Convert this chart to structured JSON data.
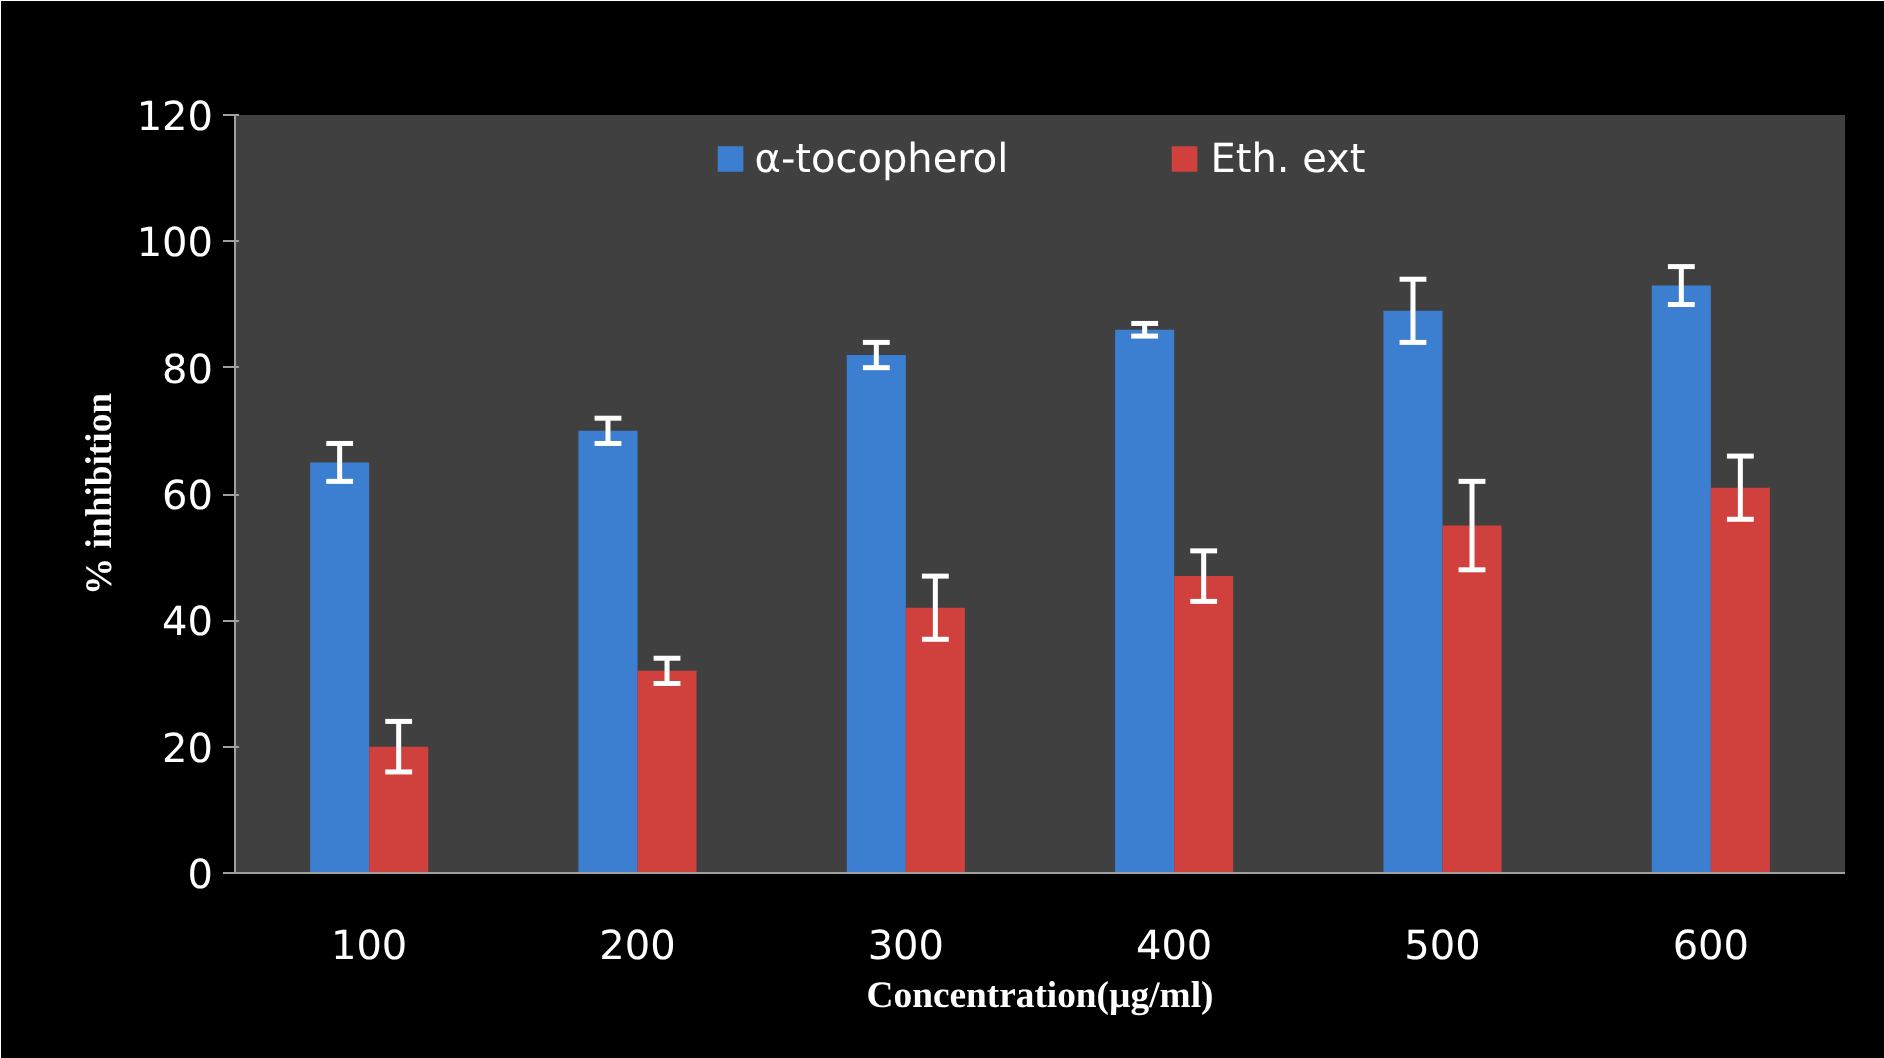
{
  "chart_data": {
    "type": "bar",
    "xlabel": "Concentration(µg/ml)",
    "ylabel": "% inhibition",
    "categories": [
      "100",
      "200",
      "300",
      "400",
      "500",
      "600"
    ],
    "series": [
      {
        "name": "α-tocopherol",
        "color": "#3c7fd0",
        "values": [
          65,
          70,
          82,
          86,
          89,
          93
        ],
        "errors": [
          3,
          2,
          2,
          1,
          5,
          3
        ]
      },
      {
        "name": "Eth. ext",
        "color": "#d0403c",
        "values": [
          20,
          32,
          42,
          47,
          55,
          61
        ],
        "errors": [
          4,
          2,
          5,
          4,
          7,
          5
        ]
      }
    ],
    "ylim": [
      0,
      120
    ],
    "yticks": [
      0,
      20,
      40,
      60,
      80,
      100,
      120
    ],
    "grid": false,
    "legend": "top"
  }
}
